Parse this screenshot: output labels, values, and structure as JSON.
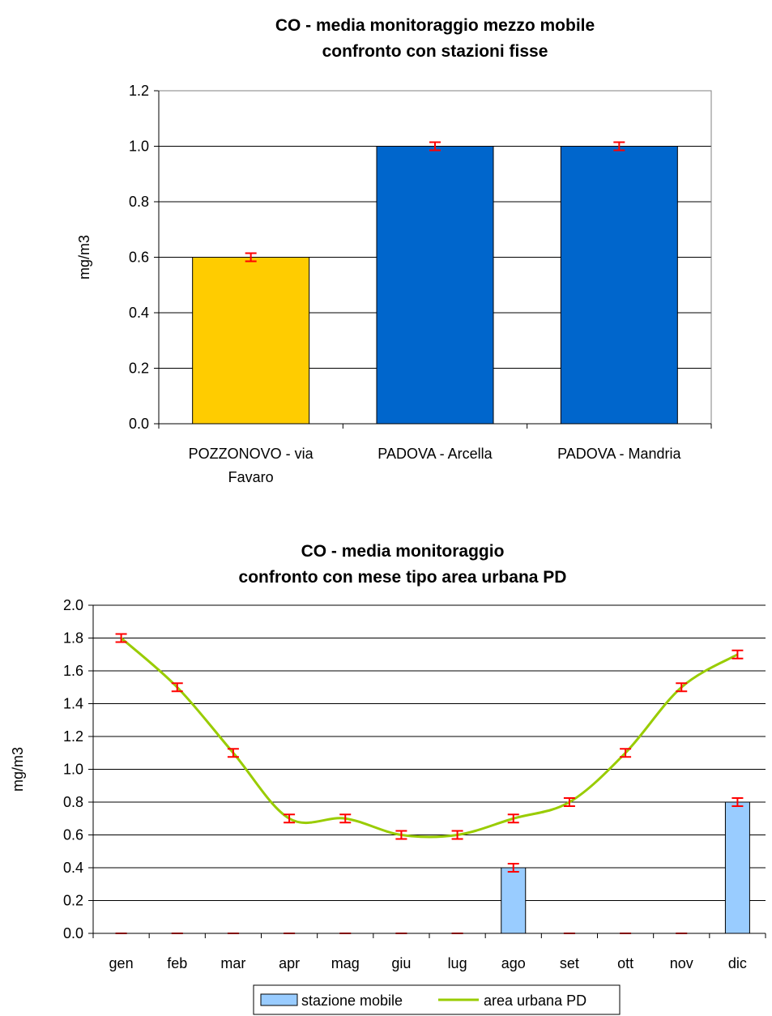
{
  "chart_data": [
    {
      "type": "bar",
      "title_lines": [
        "CO - media monitoraggio mezzo mobile",
        "confronto con stazioni fisse"
      ],
      "ylabel": "mg/m3",
      "ylim": [
        0,
        1.2
      ],
      "yticks": [
        "0.0",
        "0.2",
        "0.4",
        "0.6",
        "0.8",
        "1.0",
        "1.2"
      ],
      "categories": [
        {
          "lines": [
            "POZZONOVO - via",
            "Favaro"
          ]
        },
        {
          "lines": [
            "PADOVA - Arcella"
          ]
        },
        {
          "lines": [
            "PADOVA - Mandria"
          ]
        }
      ],
      "values": [
        0.6,
        1.0,
        1.0
      ],
      "error_bars": true,
      "grid": true,
      "colors": {
        "bars": [
          "#FFCC00",
          "#0066CC",
          "#0066CC"
        ],
        "error": "#FF0000"
      }
    },
    {
      "type": "bar+line",
      "title_lines": [
        "CO - media monitoraggio",
        "confronto con mese tipo area urbana PD"
      ],
      "ylabel": "mg/m3",
      "ylim": [
        0,
        2.0
      ],
      "yticks": [
        "0.0",
        "0.2",
        "0.4",
        "0.6",
        "0.8",
        "1.0",
        "1.2",
        "1.4",
        "1.6",
        "1.8",
        "2.0"
      ],
      "categories": [
        "gen",
        "feb",
        "mar",
        "apr",
        "mag",
        "giu",
        "lug",
        "ago",
        "set",
        "ott",
        "nov",
        "dic"
      ],
      "series": [
        {
          "name": "stazione mobile",
          "type": "bar",
          "values": [
            0,
            0,
            0,
            0,
            0,
            0,
            0,
            0.4,
            0,
            0,
            0,
            0.8
          ]
        },
        {
          "name": "area urbana PD",
          "type": "line",
          "values": [
            1.8,
            1.5,
            1.1,
            0.7,
            0.7,
            0.6,
            0.6,
            0.7,
            0.8,
            1.1,
            1.5,
            1.7
          ]
        }
      ],
      "error_bars": true,
      "grid": true,
      "legend": "bottom",
      "colors": {
        "bar": "#99CCFF",
        "line": "#99CC00",
        "error": "#FF0000"
      }
    }
  ]
}
